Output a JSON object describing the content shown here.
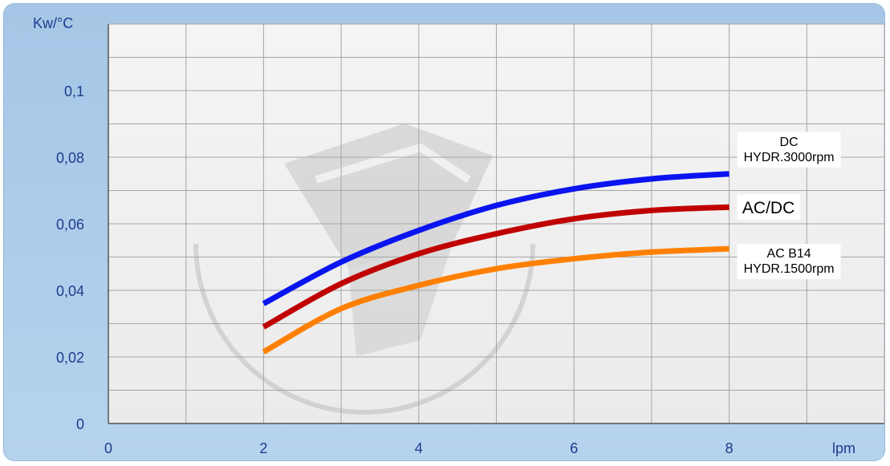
{
  "chart_data": {
    "type": "line",
    "title": "",
    "xlabel": "lpm",
    "ylabel": "Kw/°C",
    "xlim": [
      0,
      10
    ],
    "ylim": [
      0,
      0.12
    ],
    "x_ticks": [
      0,
      2,
      4,
      6,
      8
    ],
    "x_tick_labels": [
      "0",
      "2",
      "4",
      "6",
      "8"
    ],
    "y_ticks": [
      0,
      0.02,
      0.04,
      0.06,
      0.08,
      0.1
    ],
    "y_tick_labels": [
      "0",
      "0,02",
      "0,04",
      "0,06",
      "0,08",
      "0,1"
    ],
    "grid": true,
    "series": [
      {
        "name": "DC HYDR.3000rpm",
        "label_lines": [
          "DC",
          "HYDR.3000rpm"
        ],
        "color": "#0a14f0",
        "x": [
          2,
          3,
          4,
          5,
          6,
          7,
          8
        ],
        "y": [
          0.036,
          0.0485,
          0.058,
          0.0655,
          0.0705,
          0.0735,
          0.075
        ]
      },
      {
        "name": "AC/DC",
        "label_lines": [
          "AC/DC"
        ],
        "color": "#c00000",
        "x": [
          2,
          3,
          4,
          5,
          6,
          7,
          8
        ],
        "y": [
          0.029,
          0.042,
          0.051,
          0.057,
          0.0615,
          0.064,
          0.065
        ]
      },
      {
        "name": "AC B14 HYDR.1500rpm",
        "label_lines": [
          "AC B14",
          "HYDR.1500rpm"
        ],
        "color": "#ff8000",
        "x": [
          2,
          3,
          4,
          5,
          6,
          7,
          8
        ],
        "y": [
          0.0215,
          0.0345,
          0.0415,
          0.0465,
          0.0495,
          0.0515,
          0.0525
        ]
      }
    ]
  },
  "colors": {
    "plot_background": "#f2f2f2",
    "grid": "#a6a6a6",
    "tick_text": "#1c3c8c",
    "frame": "#adcbe9"
  }
}
